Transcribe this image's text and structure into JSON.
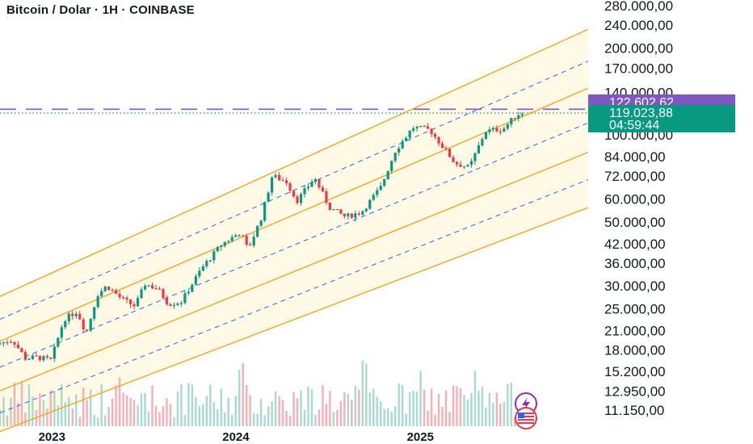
{
  "title": "Bitcoin / Dolar · 1H · COINBASE",
  "colors": {
    "up": "#089981",
    "down": "#F23645",
    "channel": "#F5A623",
    "mid_dash": "#2962FF",
    "fill": "#FFF8E1",
    "purple": "#7E57C2",
    "green_badge": "#089981"
  },
  "badges": {
    "last_high": "122.602,62",
    "current": "119.023,88",
    "countdown": "04:59:44"
  },
  "icons": [
    "lightning-icon",
    "us-flag-icon"
  ],
  "chart_data": {
    "type": "candlestick",
    "y_scale": "log",
    "ylim": [
      10500,
      300000
    ],
    "y_ticks": [
      {
        "v": 280000,
        "label": "280.000,00"
      },
      {
        "v": 240000,
        "label": "240.000,00"
      },
      {
        "v": 200000,
        "label": "200.000,00"
      },
      {
        "v": 170000,
        "label": "170.000,00"
      },
      {
        "v": 140000,
        "label": "140.000,00"
      },
      {
        "v": 100000,
        "label": "100.000,00"
      },
      {
        "v": 84000,
        "label": "84.000,00"
      },
      {
        "v": 72000,
        "label": "72.000,00"
      },
      {
        "v": 60000,
        "label": "60.000,00"
      },
      {
        "v": 50000,
        "label": "50.000,00"
      },
      {
        "v": 42000,
        "label": "42.000,00"
      },
      {
        "v": 36000,
        "label": "36.000,00"
      },
      {
        "v": 30000,
        "label": "30.000,00"
      },
      {
        "v": 25000,
        "label": "25.000,00"
      },
      {
        "v": 21000,
        "label": "21.000,00"
      },
      {
        "v": 18000,
        "label": "18.000,00"
      },
      {
        "v": 15200,
        "label": "15.200,00"
      },
      {
        "v": 12950,
        "label": "12.950,00"
      },
      {
        "v": 11150,
        "label": "11.150,00"
      }
    ],
    "x_ticks": [
      {
        "date": "2023-01-01",
        "label": "2023"
      },
      {
        "date": "2024-01-01",
        "label": "2024"
      },
      {
        "date": "2025-01-01",
        "label": "2025"
      }
    ],
    "x_range": [
      "2022-09-20",
      "2025-11-30"
    ],
    "close_path": [
      [
        "2022-09-20",
        19000
      ],
      [
        "2022-10-15",
        19500
      ],
      [
        "2022-11-10",
        16800
      ],
      [
        "2022-12-01",
        17000
      ],
      [
        "2022-12-30",
        16600
      ],
      [
        "2023-01-25",
        23000
      ],
      [
        "2023-02-20",
        24500
      ],
      [
        "2023-03-10",
        20500
      ],
      [
        "2023-04-01",
        28000
      ],
      [
        "2023-04-20",
        30000
      ],
      [
        "2023-05-20",
        27000
      ],
      [
        "2023-06-15",
        25500
      ],
      [
        "2023-07-05",
        30500
      ],
      [
        "2023-07-30",
        29300
      ],
      [
        "2023-08-20",
        26000
      ],
      [
        "2023-09-15",
        26500
      ],
      [
        "2023-10-25",
        34500
      ],
      [
        "2023-12-05",
        42000
      ],
      [
        "2024-01-10",
        46000
      ],
      [
        "2024-01-25",
        40000
      ],
      [
        "2024-02-20",
        51500
      ],
      [
        "2024-03-13",
        72000
      ],
      [
        "2024-04-10",
        69000
      ],
      [
        "2024-05-01",
        59000
      ],
      [
        "2024-06-05",
        71000
      ],
      [
        "2024-07-05",
        56000
      ],
      [
        "2024-08-05",
        52000
      ],
      [
        "2024-09-06",
        54000
      ],
      [
        "2024-10-15",
        66000
      ],
      [
        "2024-11-12",
        88000
      ],
      [
        "2024-12-17",
        106000
      ],
      [
        "2025-01-20",
        104000
      ],
      [
        "2025-02-25",
        86000
      ],
      [
        "2025-03-10",
        80000
      ],
      [
        "2025-04-08",
        77000
      ],
      [
        "2025-05-10",
        103000
      ],
      [
        "2025-06-15",
        105000
      ],
      [
        "2025-07-10",
        117000
      ],
      [
        "2025-07-22",
        119023.88
      ]
    ],
    "candle_count": 145,
    "channel": {
      "lines": [
        {
          "role": "upper",
          "style": "solid",
          "p1": [
            "2022-09-20",
            27600
          ],
          "p2": [
            "2025-11-30",
            232000
          ]
        },
        {
          "role": "upper-inner",
          "style": "dashed",
          "p1": [
            "2022-09-20",
            23000
          ],
          "p2": [
            "2025-11-30",
            180000
          ]
        },
        {
          "role": "mid-upper",
          "style": "solid",
          "p1": [
            "2022-09-20",
            19300
          ],
          "p2": [
            "2025-11-30",
            145000
          ]
        },
        {
          "role": "center",
          "style": "dashed",
          "p1": [
            "2022-09-20",
            15700
          ],
          "p2": [
            "2025-11-30",
            110000
          ]
        },
        {
          "role": "mid-lower",
          "style": "solid",
          "p1": [
            "2022-09-20",
            13000
          ],
          "p2": [
            "2025-11-30",
            87000
          ]
        },
        {
          "role": "lower-inner",
          "style": "dashed",
          "p1": [
            "2022-09-20",
            10900
          ],
          "p2": [
            "2025-11-30",
            70000
          ]
        },
        {
          "role": "lower",
          "style": "solid",
          "p1": [
            "2022-09-20",
            9400
          ],
          "p2": [
            "2025-11-30",
            56000
          ]
        }
      ]
    },
    "hlines": [
      {
        "value": 122602.62,
        "style": "dashed",
        "color": "purple"
      },
      {
        "value": 119023.88,
        "style": "dotted",
        "color": "green"
      }
    ]
  }
}
